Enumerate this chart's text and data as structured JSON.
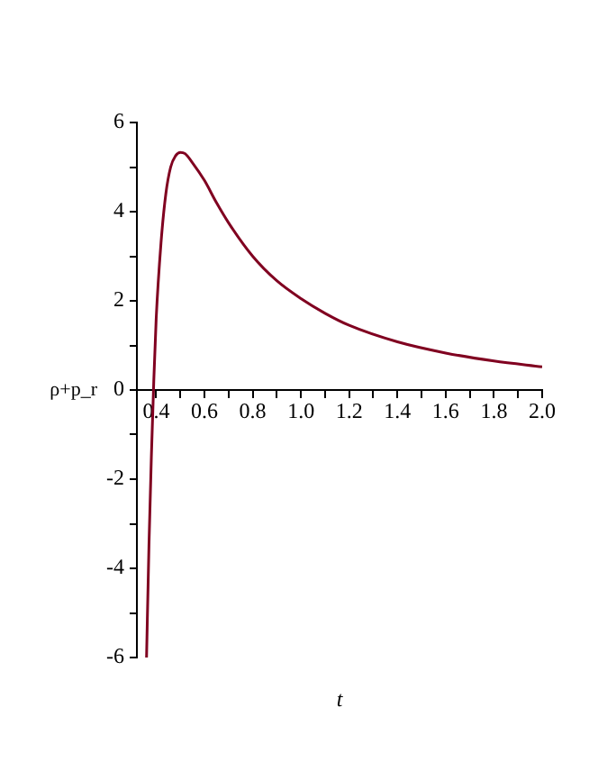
{
  "chart_data": {
    "type": "line",
    "xlabel": "t",
    "ylabel": "ρ+p_r",
    "xlim": [
      0.32,
      2.0
    ],
    "ylim": [
      -6,
      6
    ],
    "xticks": [
      0.4,
      {
        "value": 0.5,
        "label": null
      },
      0.6,
      {
        "value": 0.7,
        "label": null
      },
      0.8,
      {
        "value": 0.9,
        "label": null
      },
      {
        "value": 1,
        "label": "1.0"
      },
      {
        "value": 1.1,
        "label": null
      },
      1.2,
      {
        "value": 1.3,
        "label": null
      },
      1.4,
      {
        "value": 1.5,
        "label": null
      },
      1.6,
      {
        "value": 1.7,
        "label": null
      },
      1.8,
      {
        "value": 1.9,
        "label": null
      },
      {
        "value": 2,
        "label": "2.0"
      }
    ],
    "yticks": [
      -6,
      {
        "value": -5,
        "label": null
      },
      -4,
      {
        "value": -3,
        "label": null
      },
      -2,
      {
        "value": -1,
        "label": null
      },
      0,
      {
        "value": 1,
        "label": null
      },
      2,
      {
        "value": 3,
        "label": null
      },
      4,
      {
        "value": 5,
        "label": null
      },
      6
    ],
    "grid": false,
    "legend": false,
    "marker": "none",
    "line_style": "solid",
    "series": [
      {
        "color": "#800020",
        "x": [
          0.36,
          0.37,
          0.38,
          0.39,
          0.4,
          0.42,
          0.44,
          0.46,
          0.48,
          0.5,
          0.52,
          0.55,
          0.6,
          0.65,
          0.7,
          0.8,
          0.9,
          1.0,
          1.1,
          1.2,
          1.4,
          1.6,
          1.8,
          2.0
        ],
        "values": [
          -6,
          -3.5,
          -1.5,
          0.2,
          1.6,
          3.3,
          4.4,
          5.0,
          5.25,
          5.33,
          5.3,
          5.1,
          4.7,
          4.2,
          3.75,
          3.0,
          2.45,
          2.05,
          1.72,
          1.45,
          1.08,
          0.83,
          0.65,
          0.52
        ]
      }
    ]
  }
}
